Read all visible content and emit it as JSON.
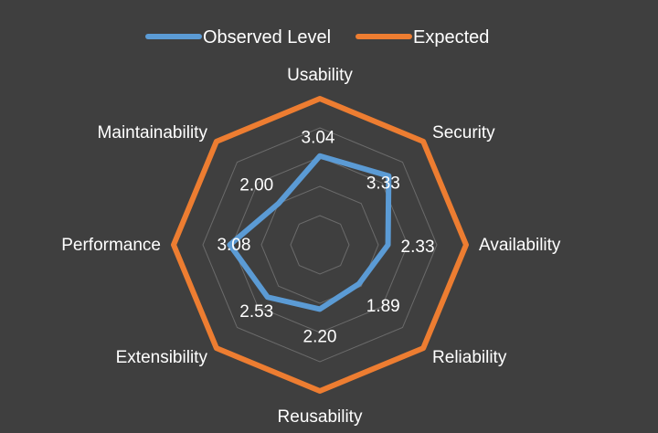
{
  "chart_data": {
    "type": "radar",
    "title": "",
    "categories": [
      "Usability",
      "Security",
      "Availability",
      "Reliability",
      "Reusability",
      "Extensibility",
      "Performance",
      "Maintainability"
    ],
    "rmax": 5,
    "grid_levels": [
      1,
      2,
      3,
      4
    ],
    "grid": true,
    "legend_position": "top",
    "series": [
      {
        "name": "Observed Level",
        "color": "#5b9bd5",
        "values": [
          3.04,
          3.33,
          2.33,
          1.89,
          2.2,
          2.53,
          3.08,
          2.0
        ],
        "labels": [
          "3.04",
          "3.33",
          "2.33",
          "1.89",
          "2.20",
          "2.53",
          "3.08",
          "2.00"
        ]
      },
      {
        "name": "Expected",
        "color": "#ed7d31",
        "values": [
          5,
          5,
          5,
          5,
          5,
          5,
          5,
          5
        ]
      }
    ]
  },
  "colors": {
    "background": "#3f3f3f",
    "grid": "#6b6b6b",
    "text": "#ffffff"
  }
}
